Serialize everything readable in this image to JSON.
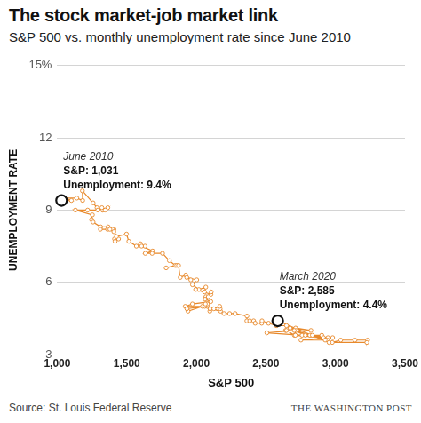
{
  "chart_data": {
    "type": "scatter",
    "title": "The stock market-job market link",
    "subtitle": "S&P 500 vs. monthly unemployment rate since June 2010",
    "x_label": "S&P 500",
    "y_label": "UNEMPLOYMENT RATE",
    "source": "Source: St. Louis Federal Reserve",
    "credit": "THE WASHINGTON POST",
    "x": [
      1031,
      1102,
      1049,
      1141,
      1183,
      1181,
      1258,
      1286,
      1327,
      1326,
      1364,
      1345,
      1321,
      1292,
      1219,
      1131,
      1253,
      1247,
      1258,
      1312,
      1366,
      1408,
      1398,
      1310,
      1362,
      1379,
      1407,
      1441,
      1412,
      1416,
      1426,
      1498,
      1515,
      1569,
      1598,
      1631,
      1606,
      1686,
      1633,
      1682,
      1757,
      1806,
      1848,
      1783,
      1859,
      1872,
      1884,
      1924,
      1960,
      1931,
      2003,
      1972,
      2018,
      2068,
      2059,
      1995,
      2105,
      2068,
      2086,
      2107,
      2063,
      2104,
      1972,
      1920,
      2079,
      2080,
      2044,
      1940,
      1932,
      2060,
      2065,
      2097,
      2099,
      2174,
      2171,
      2168,
      2126,
      2199,
      2239,
      2279,
      2364,
      2363,
      2384,
      2412,
      2423,
      2470,
      2472,
      2519,
      2575,
      2648,
      2674,
      2824,
      2714,
      2641,
      2648,
      2705,
      2718,
      2816,
      2902,
      2914,
      2712,
      2760,
      2507,
      2704,
      2784,
      2834,
      2946,
      2752,
      2942,
      2980,
      2926,
      2977,
      3038,
      3141,
      3231,
      3226,
      2954,
      2585
    ],
    "values": [
      9.4,
      9.4,
      9.5,
      9.5,
      9.4,
      9.8,
      9.3,
      9.1,
      9.0,
      9.0,
      9.1,
      9.0,
      9.1,
      9.0,
      9.0,
      9.0,
      8.8,
      8.6,
      8.5,
      8.3,
      8.3,
      8.2,
      8.2,
      8.2,
      8.2,
      8.2,
      8.1,
      7.8,
      7.8,
      7.7,
      7.9,
      8.0,
      7.7,
      7.5,
      7.6,
      7.5,
      7.5,
      7.3,
      7.2,
      7.2,
      7.2,
      6.9,
      6.7,
      6.6,
      6.7,
      6.7,
      6.2,
      6.3,
      6.1,
      6.2,
      6.1,
      5.9,
      5.7,
      5.8,
      5.6,
      5.7,
      5.5,
      5.4,
      5.4,
      5.6,
      5.3,
      5.2,
      5.1,
      5.0,
      5.0,
      5.1,
      5.0,
      4.8,
      4.9,
      5.0,
      5.1,
      4.8,
      4.9,
      4.8,
      4.9,
      5.0,
      4.9,
      4.7,
      4.7,
      4.7,
      4.6,
      4.4,
      4.4,
      4.4,
      4.3,
      4.3,
      4.4,
      4.3,
      4.2,
      4.2,
      4.1,
      4.0,
      4.1,
      4.0,
      4.0,
      3.8,
      4.0,
      3.8,
      3.8,
      3.7,
      3.8,
      3.8,
      3.9,
      4.0,
      3.8,
      3.8,
      3.7,
      3.6,
      3.6,
      3.7,
      3.6,
      3.5,
      3.6,
      3.6,
      3.6,
      3.5,
      3.5,
      4.4
    ],
    "color": "#e8892b",
    "marker": "circle",
    "line_style": "solid",
    "xlim": [
      1000,
      3500
    ],
    "xticks": [
      {
        "value": 1000,
        "label": "1,000"
      },
      {
        "value": 1500,
        "label": "1,500"
      },
      {
        "value": 2000,
        "label": "2,000"
      },
      {
        "value": 2500,
        "label": "2,500"
      },
      {
        "value": 3000,
        "label": "3,000"
      },
      {
        "value": 3500,
        "label": "3,500"
      }
    ],
    "ylim": [
      3,
      15
    ],
    "yticks": [
      3,
      6,
      9,
      12,
      {
        "value": 15,
        "label": "15%"
      }
    ],
    "grid": "y",
    "annotations": [
      {
        "x": 1031,
        "y": 9.4,
        "label": "June 2010",
        "text": [
          "S&P: 1,031",
          "Unemployment: 9.4%"
        ]
      },
      {
        "x": 2585,
        "y": 4.4,
        "label": "March 2020",
        "text": [
          "S&P: 2,585",
          "Unemployment: 4.4%"
        ]
      }
    ]
  }
}
